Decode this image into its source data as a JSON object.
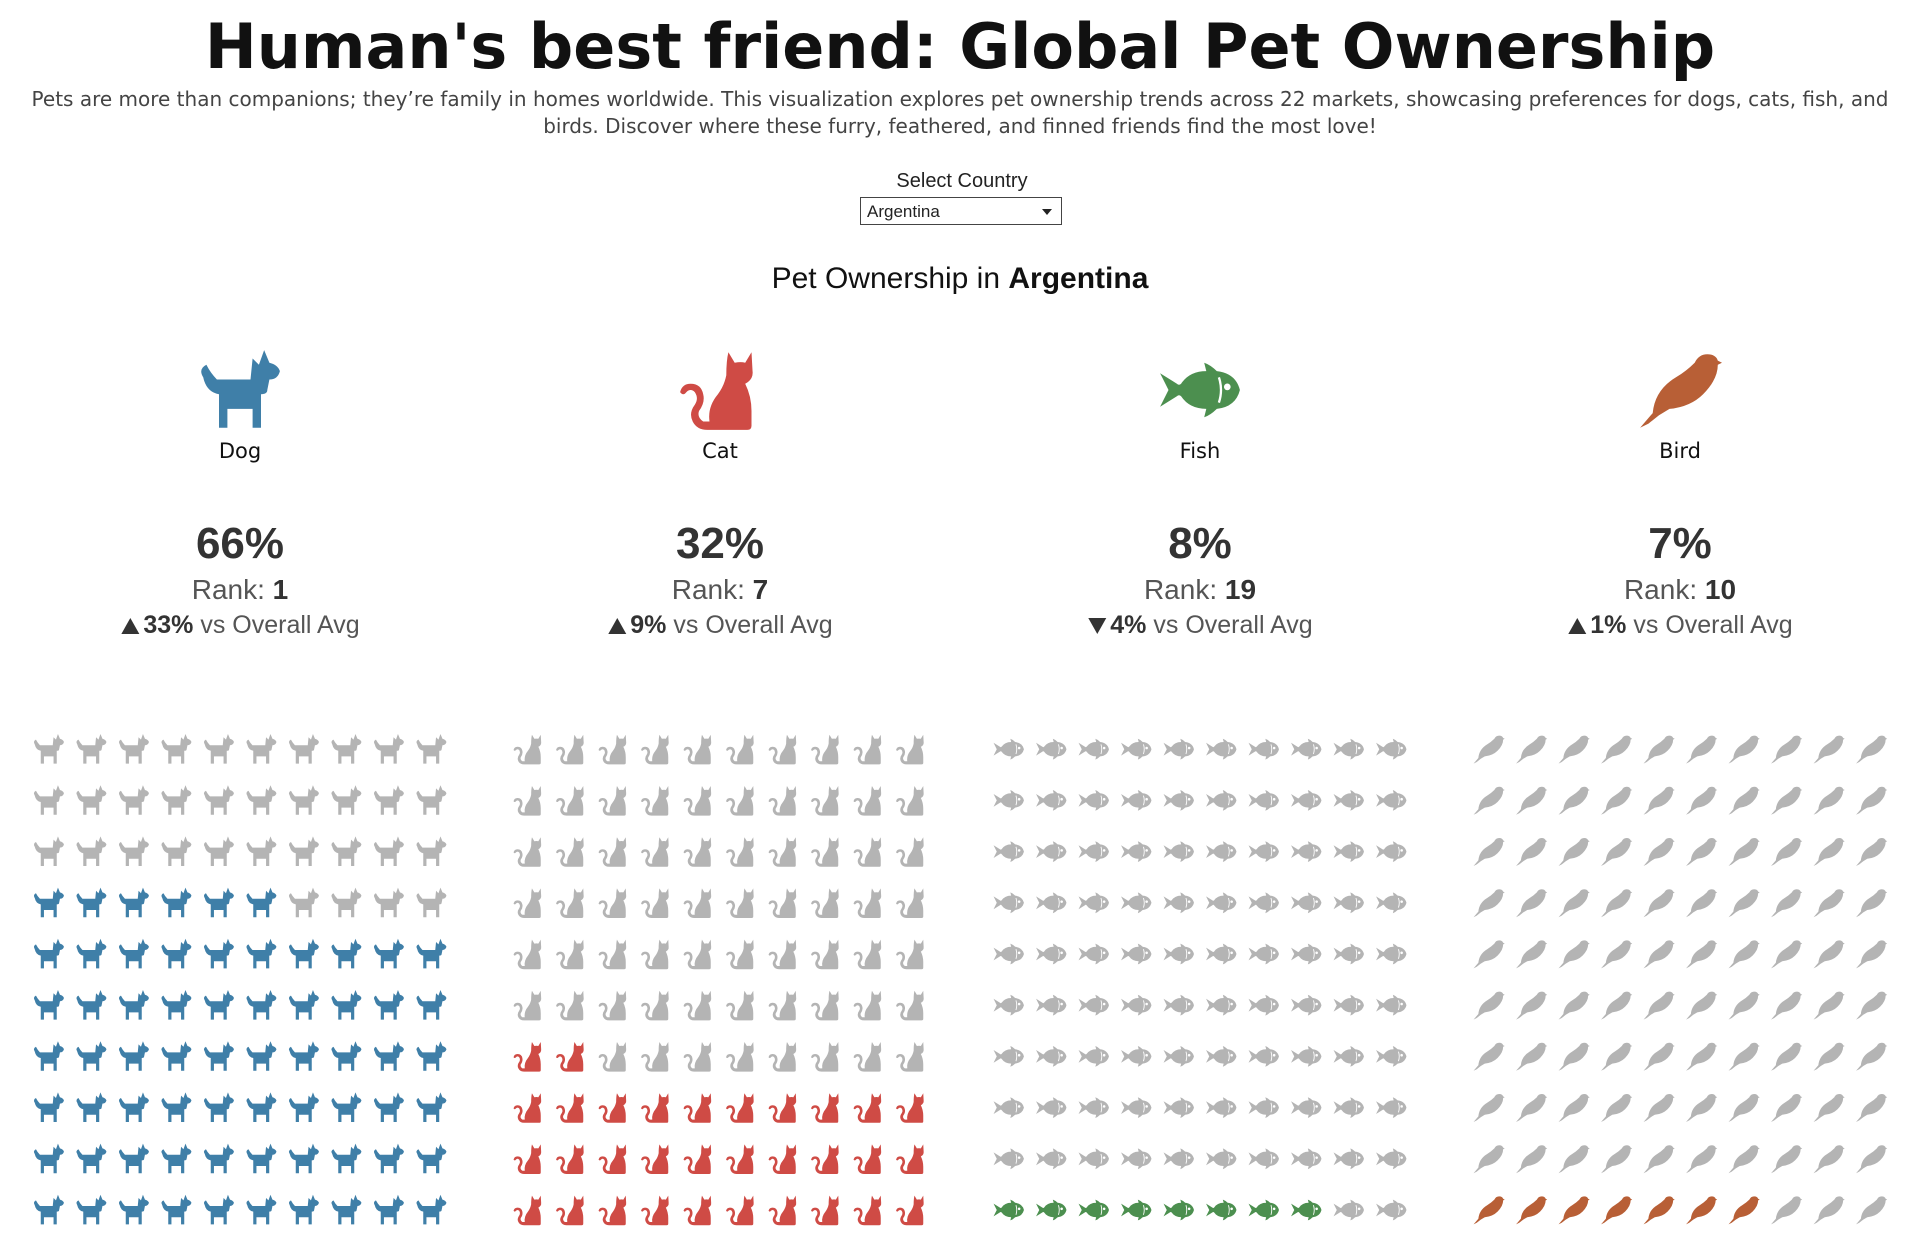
{
  "title": "Human's best friend: Global Pet Ownership",
  "subtitle_line1": "Pets are more than companions; they’re family in homes worldwide. This visualization explores pet ownership trends across 22 markets, showcasing preferences for dogs, cats, fish, and",
  "subtitle_line2": "birds. Discover where these furry, feathered, and finned friends find the most love!",
  "selector": {
    "label": "Select Country",
    "value": "Argentina"
  },
  "heading": {
    "prefix": "Pet Ownership in ",
    "country": "Argentina"
  },
  "rank_label": "Rank: ",
  "compare_suffix": " vs Overall Avg",
  "colors": {
    "inactive": "#b4b4b4",
    "text": "#333333"
  },
  "chart_data": {
    "type": "waffle",
    "grid": {
      "rows": 10,
      "cols": 10
    },
    "pets": [
      {
        "name": "Dog",
        "icon": "dog-icon",
        "color": "#3f7fa8",
        "value": 66,
        "display": "66%",
        "rank": "1",
        "delta": "33%",
        "direction": "up"
      },
      {
        "name": "Cat",
        "icon": "cat-icon",
        "color": "#cf4b45",
        "value": 32,
        "display": "32%",
        "rank": "7",
        "delta": "9%",
        "direction": "up"
      },
      {
        "name": "Fish",
        "icon": "fish-icon",
        "color": "#4c8f4f",
        "value": 8,
        "display": "8%",
        "rank": "19",
        "delta": "4%",
        "direction": "down"
      },
      {
        "name": "Bird",
        "icon": "bird-icon",
        "color": "#b85f36",
        "value": 7,
        "display": "7%",
        "rank": "10",
        "delta": "1%",
        "direction": "up"
      }
    ]
  }
}
